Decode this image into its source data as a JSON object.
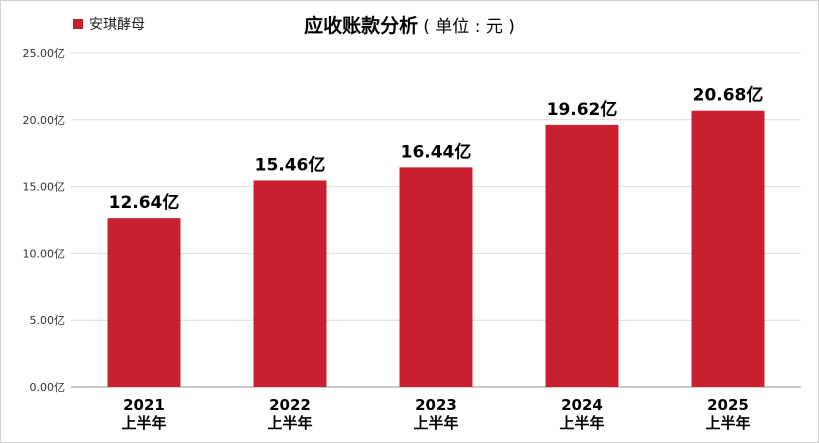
{
  "legend": {
    "label": "安琪酵母",
    "color": "#c8202f"
  },
  "title": {
    "main": "应收账款分析",
    "sub": "( 单位 : 元 )"
  },
  "chart_data": {
    "type": "bar",
    "categories": [
      [
        "2021",
        "上半年"
      ],
      [
        "2022",
        "上半年"
      ],
      [
        "2023",
        "上半年"
      ],
      [
        "2024",
        "上半年"
      ],
      [
        "2025",
        "上半年"
      ]
    ],
    "series": [
      {
        "name": "安琪酵母",
        "values": [
          12.64,
          15.46,
          16.44,
          19.62,
          20.68
        ],
        "color": "#c8202f"
      }
    ],
    "data_labels": [
      "12.64亿",
      "15.46亿",
      "16.44亿",
      "19.62亿",
      "20.68亿"
    ],
    "y_ticks": [
      "0.00亿",
      "5.00亿",
      "10.00亿",
      "15.00亿",
      "20.00亿",
      "25.00亿"
    ],
    "ylim": [
      0,
      25
    ],
    "grid": true,
    "legend_position": "top-left"
  }
}
